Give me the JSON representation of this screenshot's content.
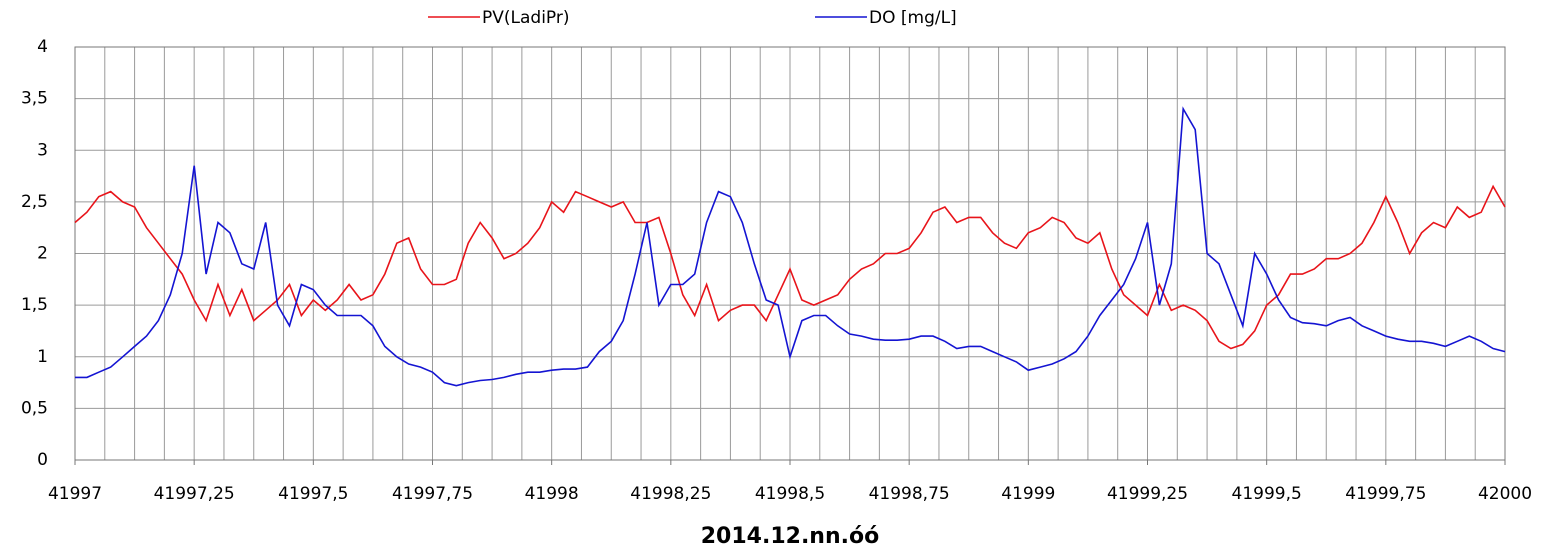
{
  "chart_data": {
    "type": "line",
    "xlabel": "2014.12.nn.óó",
    "x": [
      41997,
      41997.025,
      41997.05,
      41997.075,
      41997.1,
      41997.125,
      41997.15,
      41997.175,
      41997.2,
      41997.225,
      41997.25,
      41997.275,
      41997.3,
      41997.325,
      41997.35,
      41997.375,
      41997.4,
      41997.425,
      41997.45,
      41997.475,
      41997.5,
      41997.525,
      41997.55,
      41997.575,
      41997.6,
      41997.625,
      41997.65,
      41997.675,
      41997.7,
      41997.725,
      41997.75,
      41997.775,
      41997.8,
      41997.825,
      41997.85,
      41997.875,
      41997.9,
      41997.925,
      41997.95,
      41997.975,
      41998,
      41998.025,
      41998.05,
      41998.075,
      41998.1,
      41998.125,
      41998.15,
      41998.175,
      41998.2,
      41998.225,
      41998.25,
      41998.275,
      41998.3,
      41998.325,
      41998.35,
      41998.375,
      41998.4,
      41998.425,
      41998.45,
      41998.475,
      41998.5,
      41998.525,
      41998.55,
      41998.575,
      41998.6,
      41998.625,
      41998.65,
      41998.675,
      41998.7,
      41998.725,
      41998.75,
      41998.775,
      41998.8,
      41998.825,
      41998.85,
      41998.875,
      41998.9,
      41998.925,
      41998.95,
      41998.975,
      41999,
      41999.025,
      41999.05,
      41999.075,
      41999.1,
      41999.125,
      41999.15,
      41999.175,
      41999.2,
      41999.225,
      41999.25,
      41999.275,
      41999.3,
      41999.325,
      41999.35,
      41999.375,
      41999.4,
      41999.425,
      41999.45,
      41999.475,
      41999.5,
      41999.525,
      41999.55,
      41999.575,
      41999.6,
      41999.625,
      41999.65,
      41999.675,
      41999.7,
      41999.725,
      41999.75,
      41999.775,
      41999.8,
      41999.825,
      41999.85,
      41999.875,
      41999.9,
      41999.925,
      41999.95,
      41999.975,
      42000
    ],
    "series": [
      {
        "name": "PV(LadiPr)",
        "color": "#e8141a",
        "values": [
          2.3,
          2.4,
          2.55,
          2.6,
          2.5,
          2.45,
          2.25,
          2.1,
          1.95,
          1.8,
          1.55,
          1.35,
          1.7,
          1.4,
          1.65,
          1.35,
          1.45,
          1.55,
          1.7,
          1.4,
          1.55,
          1.45,
          1.55,
          1.7,
          1.55,
          1.6,
          1.8,
          2.1,
          2.15,
          1.85,
          1.7,
          1.7,
          1.75,
          2.1,
          2.3,
          2.15,
          1.95,
          2.0,
          2.1,
          2.25,
          2.5,
          2.4,
          2.6,
          2.55,
          2.5,
          2.45,
          2.5,
          2.3,
          2.3,
          2.35,
          2.0,
          1.6,
          1.4,
          1.7,
          1.35,
          1.45,
          1.5,
          1.5,
          1.35,
          1.6,
          1.85,
          1.55,
          1.5,
          1.55,
          1.6,
          1.75,
          1.85,
          1.9,
          2.0,
          2.0,
          2.05,
          2.2,
          2.4,
          2.45,
          2.3,
          2.35,
          2.35,
          2.2,
          2.1,
          2.05,
          2.2,
          2.25,
          2.35,
          2.3,
          2.15,
          2.1,
          2.2,
          1.85,
          1.6,
          1.5,
          1.4,
          1.7,
          1.45,
          1.5,
          1.45,
          1.35,
          1.15,
          1.08,
          1.12,
          1.25,
          1.5,
          1.6,
          1.8,
          1.8,
          1.85,
          1.95,
          1.95,
          2.0,
          2.1,
          2.3,
          2.55,
          2.3,
          2.0,
          2.2,
          2.3,
          2.25,
          2.45,
          2.35,
          2.4,
          2.65,
          2.45
        ]
      },
      {
        "name": "DO [mg/L]",
        "color": "#1414d2",
        "values": [
          0.8,
          0.8,
          0.85,
          0.9,
          1.0,
          1.1,
          1.2,
          1.35,
          1.6,
          2.0,
          2.85,
          1.8,
          2.3,
          2.2,
          1.9,
          1.85,
          2.3,
          1.5,
          1.3,
          1.7,
          1.65,
          1.5,
          1.4,
          1.4,
          1.4,
          1.3,
          1.1,
          1.0,
          0.93,
          0.9,
          0.85,
          0.75,
          0.72,
          0.75,
          0.77,
          0.78,
          0.8,
          0.83,
          0.85,
          0.85,
          0.87,
          0.88,
          0.88,
          0.9,
          1.05,
          1.15,
          1.35,
          1.8,
          2.3,
          1.5,
          1.7,
          1.7,
          1.8,
          2.3,
          2.6,
          2.55,
          2.3,
          1.9,
          1.55,
          1.5,
          1.0,
          1.35,
          1.4,
          1.4,
          1.3,
          1.22,
          1.2,
          1.17,
          1.16,
          1.16,
          1.17,
          1.2,
          1.2,
          1.15,
          1.08,
          1.1,
          1.1,
          1.05,
          1.0,
          0.95,
          0.87,
          0.9,
          0.93,
          0.98,
          1.05,
          1.2,
          1.4,
          1.55,
          1.7,
          1.95,
          2.3,
          1.5,
          1.9,
          3.4,
          3.2,
          2.0,
          1.9,
          1.6,
          1.3,
          2.0,
          1.8,
          1.55,
          1.38,
          1.33,
          1.32,
          1.3,
          1.35,
          1.38,
          1.3,
          1.25,
          1.2,
          1.17,
          1.15,
          1.15,
          1.13,
          1.1,
          1.15,
          1.2,
          1.15,
          1.08,
          1.05
        ]
      }
    ],
    "xlim": [
      41997,
      42000
    ],
    "xticks": [
      41997,
      {
        "value": 41997.25,
        "label": "41997,25"
      },
      {
        "value": 41997.5,
        "label": "41997,5"
      },
      {
        "value": 41997.75,
        "label": "41997,75"
      },
      41998,
      {
        "value": 41998.25,
        "label": "41998,25"
      },
      {
        "value": 41998.5,
        "label": "41998,5"
      },
      {
        "value": 41998.75,
        "label": "41998,75"
      },
      41999,
      {
        "value": 41999.25,
        "label": "41999,25"
      },
      {
        "value": 41999.5,
        "label": "41999,5"
      },
      {
        "value": 41999.75,
        "label": "41999,75"
      },
      42000
    ],
    "xgridlines": [
      41997,
      41997.0625,
      41997.125,
      41997.1875,
      41997.25,
      41997.3125,
      41997.375,
      41997.4375,
      41997.5,
      41997.5625,
      41997.625,
      41997.6875,
      41997.75,
      41997.8125,
      41997.875,
      41997.9375,
      41998,
      41998.0625,
      41998.125,
      41998.1875,
      41998.25,
      41998.3125,
      41998.375,
      41998.4375,
      41998.5,
      41998.5625,
      41998.625,
      41998.6875,
      41998.75,
      41998.8125,
      41998.875,
      41998.9375,
      41999,
      41999.0625,
      41999.125,
      41999.1875,
      41999.25,
      41999.3125,
      41999.375,
      41999.4375,
      41999.5,
      41999.5625,
      41999.625,
      41999.6875,
      41999.75,
      41999.8125,
      41999.875,
      41999.9375,
      42000
    ],
    "ylim": [
      0,
      4
    ],
    "yticks": [
      0,
      {
        "value": 0.5,
        "label": "0,5"
      },
      1,
      {
        "value": 1.5,
        "label": "1,5"
      },
      2,
      {
        "value": 2.5,
        "label": "2,5"
      },
      3,
      {
        "value": 3.5,
        "label": "3,5"
      },
      4
    ],
    "grid": true,
    "legend": "top"
  }
}
